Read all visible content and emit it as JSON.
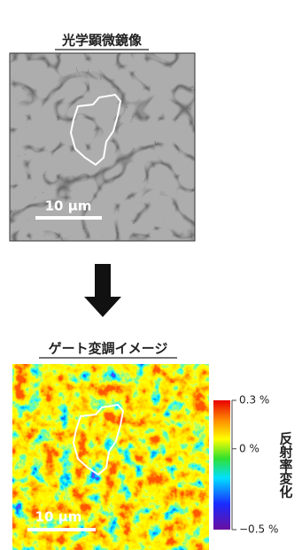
{
  "panels": [
    {
      "title": "光学顕微鏡像",
      "scale_bar": "10 μm"
    },
    {
      "title": "ゲート変調イメージ",
      "scale_bar": "10 μm"
    }
  ],
  "colorbar": {
    "label": "反射率変化",
    "lim": [
      -0.5,
      0.3
    ],
    "ticks": [
      {
        "value": 0.3,
        "label": "0.3 %"
      },
      {
        "value": 0,
        "label": "0 %"
      },
      {
        "value": -0.5,
        "label": "−0.5 %"
      }
    ]
  }
}
